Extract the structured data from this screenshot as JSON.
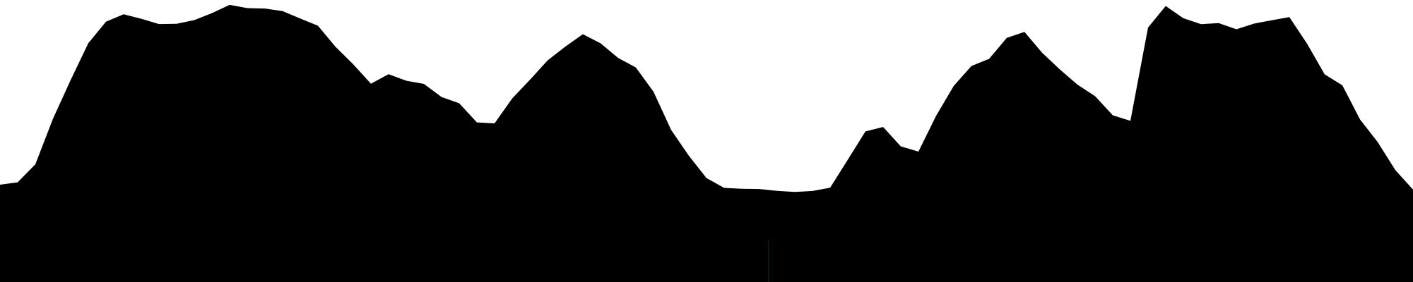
{
  "chart_data": {
    "type": "area",
    "title": "",
    "xlabel": "",
    "ylabel": "",
    "ylim": [
      0,
      400
    ],
    "grid": false,
    "legend": "none",
    "fill_color": "#000000",
    "background_color": "#ffffff",
    "values": [
      138,
      142,
      168,
      233,
      288,
      340,
      370,
      380,
      373,
      365,
      365,
      370,
      380,
      392,
      388,
      388,
      385,
      375,
      365,
      335,
      310,
      282,
      295,
      285,
      280,
      261,
      252,
      225,
      224,
      260,
      287,
      315,
      335,
      353,
      340,
      319,
      305,
      270,
      215,
      178,
      146,
      132,
      131,
      131,
      129,
      128,
      130,
      135,
      175,
      215,
      221,
      193,
      185,
      235,
      277,
      305,
      315,
      345,
      354,
      325,
      302,
      281,
      265,
      238,
      230,
      362,
      392,
      374,
      365,
      366,
      357,
      365,
      370,
      375,
      338,
      295,
      280,
      232,
      200,
      160,
      132
    ]
  }
}
